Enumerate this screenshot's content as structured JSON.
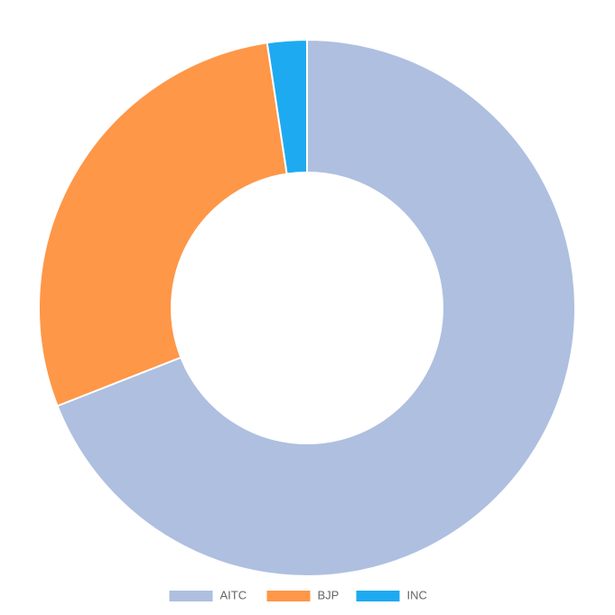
{
  "chart_data": {
    "type": "doughnut",
    "categories": [
      "AITC",
      "BJP",
      "INC"
    ],
    "values": [
      29,
      12,
      1
    ],
    "colors": [
      "#aebfe0",
      "#fe9748",
      "#1eaaf1"
    ],
    "legend": "bottom"
  }
}
